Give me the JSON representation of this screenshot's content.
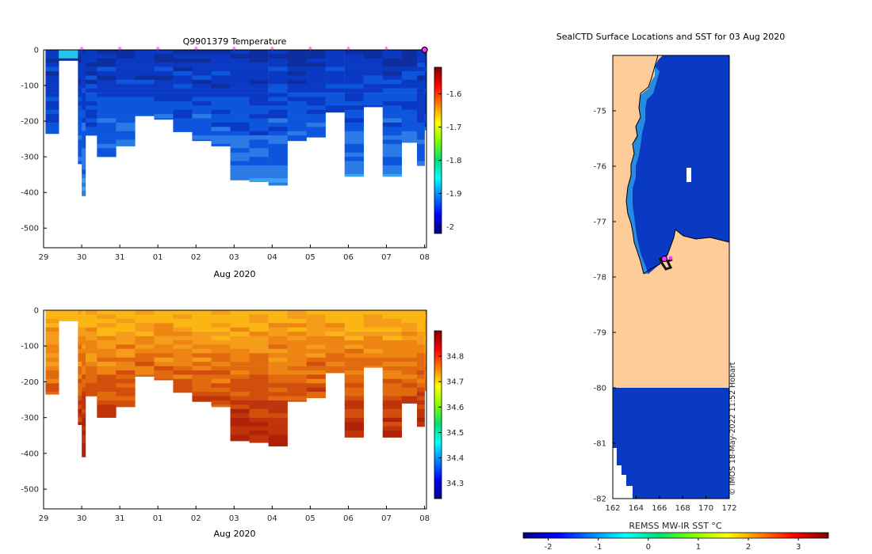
{
  "credit": "© IMOS 18-May-2022 11:52 Hobart",
  "colors": {
    "land": "#fdcc98",
    "ice_blue": "#0a3ac4",
    "frame": "#000000",
    "surface_marker": "#ff33ff"
  },
  "chart_data": [
    {
      "type": "heatmap",
      "title": "Q9901379  Temperature",
      "xlabel": "Aug 2020",
      "ylabel": "",
      "x_tick_labels": [
        "29",
        "30",
        "31",
        "01",
        "02",
        "03",
        "04",
        "05",
        "06",
        "07",
        "08"
      ],
      "xlim": [
        0,
        10.05
      ],
      "y_ticks": [
        0,
        -100,
        -200,
        -300,
        -400,
        -500
      ],
      "ylim": [
        -555,
        0
      ],
      "profile_days": [
        0.05,
        0.4,
        0.9,
        1.0,
        1.1,
        1.4,
        1.9,
        2.4,
        2.9,
        3.4,
        3.9,
        4.4,
        4.9,
        5.4,
        5.9,
        6.4,
        6.9,
        7.4,
        7.9,
        8.4,
        8.9,
        9.4,
        9.8,
        10.0
      ],
      "profile_max_depth": [
        235,
        30,
        320,
        410,
        240,
        300,
        270,
        185,
        195,
        230,
        255,
        270,
        365,
        370,
        380,
        255,
        245,
        175,
        355,
        160,
        355,
        260,
        325,
        225
      ],
      "surface_location_days": [
        1,
        2,
        3,
        4,
        5,
        6,
        7,
        8,
        9,
        10
      ],
      "colorbar": {
        "ticks": [
          -1.6,
          -1.7,
          -1.8,
          -1.9,
          -2
        ],
        "range": [
          -2.02,
          -1.52
        ]
      },
      "palette": [
        "#0d2e9e",
        "#0a3ac4",
        "#0c55dc",
        "#2b7ae6",
        "#3aa3f0",
        "#22c7e8"
      ]
    },
    {
      "type": "heatmap",
      "title": "",
      "xlabel": "Aug 2020",
      "ylabel": "",
      "x_tick_labels": [
        "29",
        "30",
        "31",
        "01",
        "02",
        "03",
        "04",
        "05",
        "06",
        "07",
        "08"
      ],
      "xlim": [
        0,
        10.05
      ],
      "y_ticks": [
        0,
        -100,
        -200,
        -300,
        -400,
        -500
      ],
      "ylim": [
        -555,
        0
      ],
      "profile_days": [
        0.05,
        0.4,
        0.9,
        1.0,
        1.1,
        1.4,
        1.9,
        2.4,
        2.9,
        3.4,
        3.9,
        4.4,
        4.9,
        5.4,
        5.9,
        6.4,
        6.9,
        7.4,
        7.9,
        8.4,
        8.9,
        9.4,
        9.8,
        10.0
      ],
      "profile_max_depth": [
        235,
        30,
        320,
        410,
        240,
        300,
        270,
        185,
        195,
        230,
        255,
        270,
        365,
        370,
        380,
        255,
        245,
        175,
        355,
        160,
        355,
        260,
        325,
        225
      ],
      "colorbar": {
        "ticks": [
          34.8,
          34.7,
          34.6,
          34.5,
          34.4,
          34.3
        ],
        "range": [
          34.24,
          34.9
        ]
      },
      "palette": [
        "#fcb614",
        "#f59c1a",
        "#ee8412",
        "#e26a0e",
        "#d24e0c",
        "#bf340a",
        "#b02208"
      ]
    },
    {
      "type": "heatmap",
      "title": "SealCTD Surface Locations and SST for 03 Aug 2020",
      "xlabel": "",
      "ylabel": "",
      "x_ticks": [
        162,
        164,
        166,
        168,
        170,
        172
      ],
      "y_ticks": [
        -75,
        -76,
        -77,
        -78,
        -79,
        -80,
        -81,
        -82
      ],
      "xlim": [
        162,
        172
      ],
      "ylim": [
        -82,
        -74
      ]
    }
  ],
  "sst_colorbar": {
    "label": "REMSS MW-IR SST °C",
    "ticks": [
      -2,
      -1,
      0,
      1,
      2,
      3
    ],
    "range": [
      -2.5,
      3.6
    ]
  }
}
